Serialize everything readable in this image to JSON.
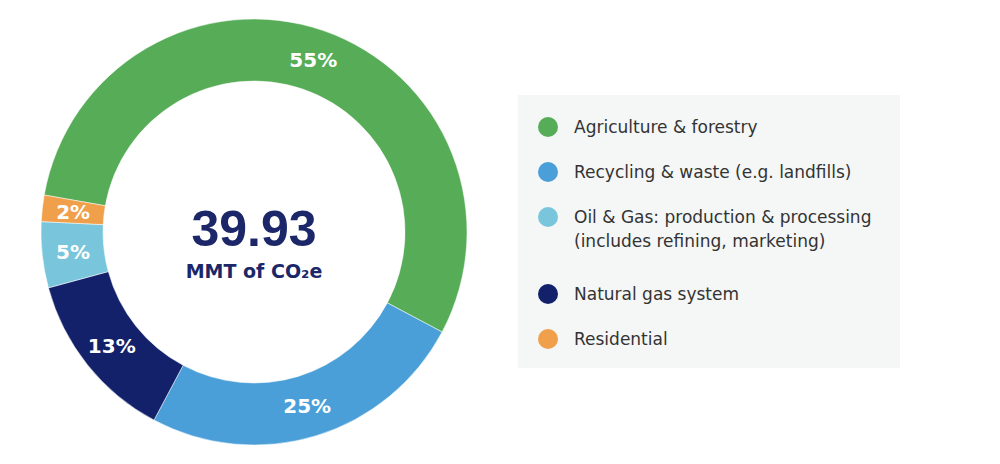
{
  "chart_data": {
    "type": "pie",
    "categories": [
      "Agriculture & forestry",
      "Recycling & waste (e.g. landfills)",
      "Oil & Gas: production & processing\n(includes refining, marketing)",
      "Natural gas system",
      "Residential"
    ],
    "values": [
      55,
      25,
      5,
      13,
      2
    ],
    "value_labels": [
      "55%",
      "25%",
      "5%",
      "13%",
      "2%"
    ],
    "colors": [
      "#57ad57",
      "#4a9fd8",
      "#79c6dc",
      "#13216a",
      "#f0a04b"
    ],
    "data_labels": true,
    "legend": "right",
    "total": 39.93,
    "total_label": "MMT of CO₂e"
  }
}
